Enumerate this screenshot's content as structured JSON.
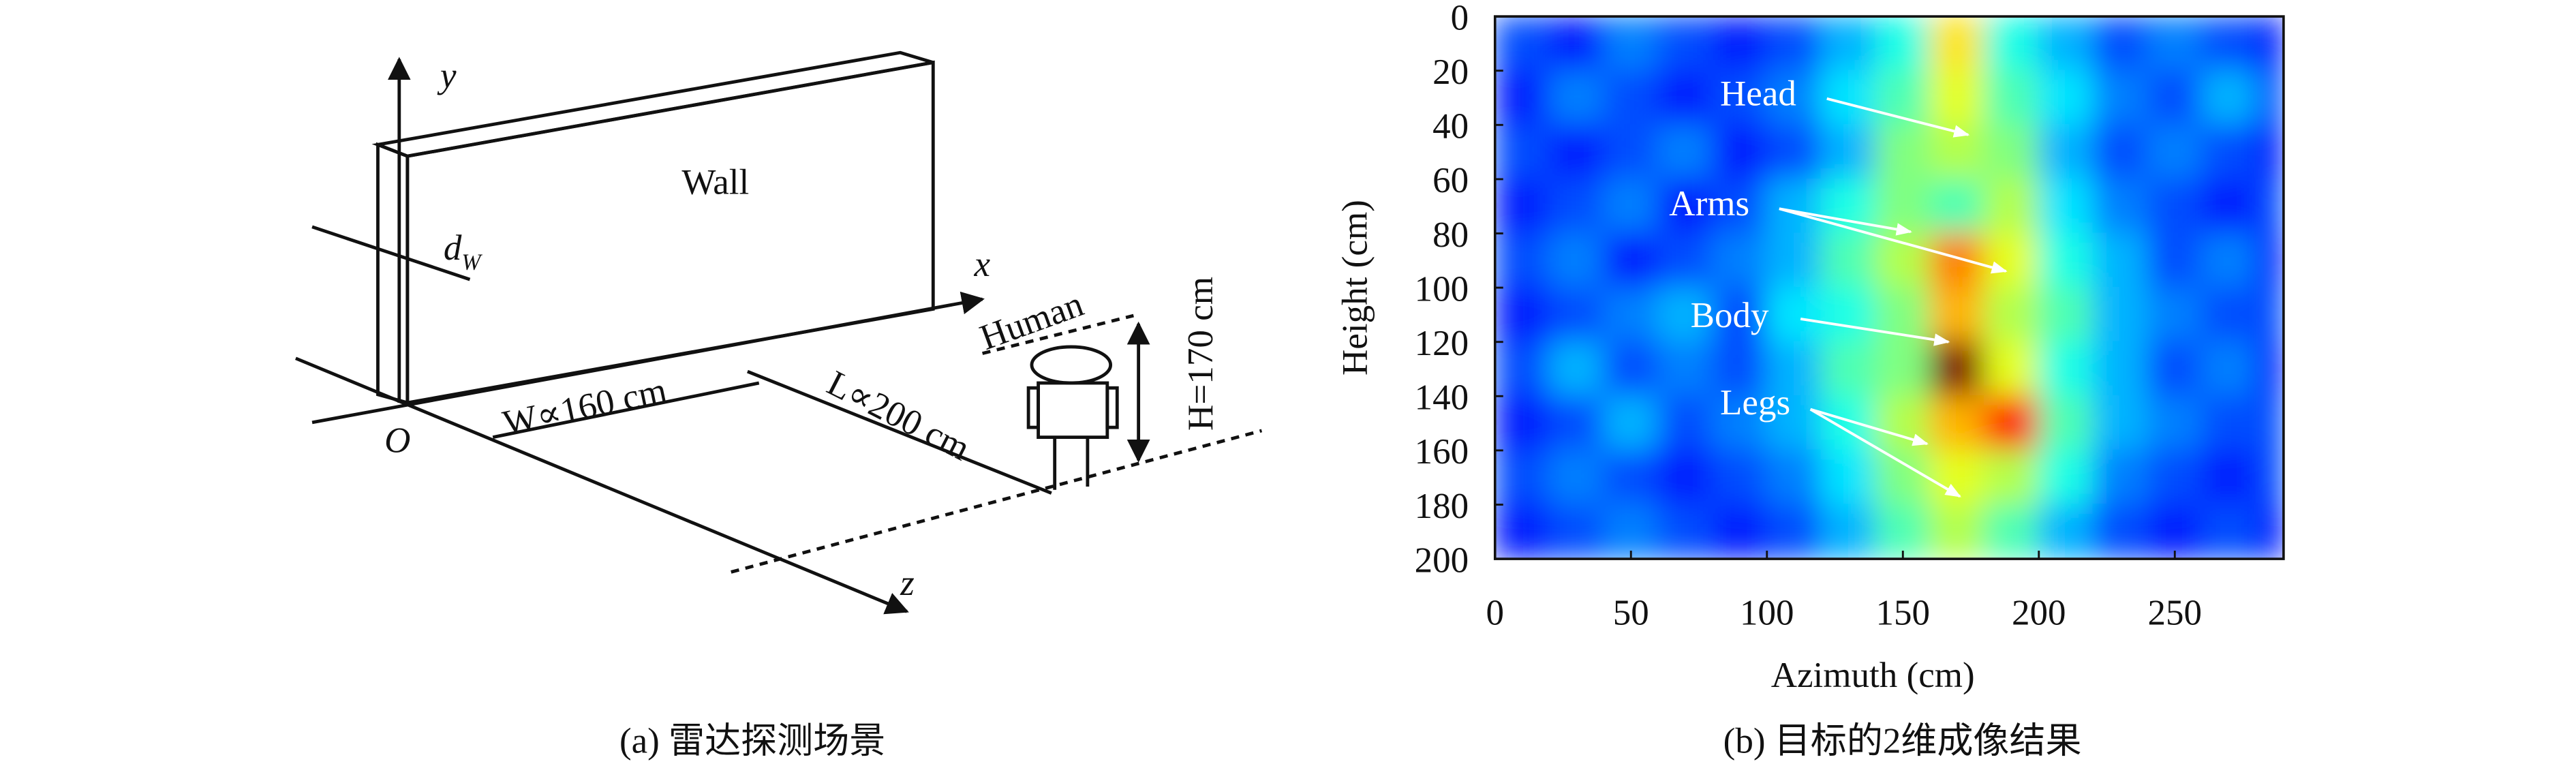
{
  "diagram": {
    "caption": "(a) 雷达探测场景",
    "axis_y": "y",
    "axis_x": "x",
    "axis_z": "z",
    "origin": "O",
    "wall": "Wall",
    "thickness": "d",
    "thickness_sub": "W",
    "width": "W∝160 cm",
    "distance": "L∝200 cm",
    "target": "Human",
    "height": "H=170 cm"
  },
  "chart_data": {
    "type": "heatmap",
    "caption": "(b) 目标的2维成像结果",
    "xlabel": "Azimuth (cm)",
    "ylabel": "Height (cm)",
    "xbins": [
      0,
      20,
      40,
      60,
      80,
      100,
      120,
      140,
      160,
      180,
      200,
      220,
      240,
      260,
      280,
      290
    ],
    "ybins": [
      0,
      20,
      40,
      60,
      80,
      100,
      120,
      140,
      160,
      180,
      200
    ],
    "z": [
      [
        0.2,
        0.15,
        0.25,
        0.2,
        0.15,
        0.2,
        0.3,
        0.4,
        0.65,
        0.4,
        0.3,
        0.2,
        0.25,
        0.2,
        0.15
      ],
      [
        0.15,
        0.25,
        0.2,
        0.15,
        0.2,
        0.25,
        0.35,
        0.45,
        0.6,
        0.45,
        0.35,
        0.25,
        0.2,
        0.3,
        0.2
      ],
      [
        0.2,
        0.15,
        0.2,
        0.25,
        0.15,
        0.2,
        0.3,
        0.5,
        0.55,
        0.5,
        0.3,
        0.2,
        0.25,
        0.2,
        0.15
      ],
      [
        0.15,
        0.2,
        0.25,
        0.15,
        0.2,
        0.3,
        0.4,
        0.5,
        0.45,
        0.55,
        0.35,
        0.25,
        0.2,
        0.15,
        0.2
      ],
      [
        0.2,
        0.25,
        0.15,
        0.2,
        0.25,
        0.3,
        0.45,
        0.55,
        0.75,
        0.6,
        0.4,
        0.3,
        0.2,
        0.25,
        0.15
      ],
      [
        0.15,
        0.2,
        0.25,
        0.3,
        0.2,
        0.35,
        0.4,
        0.5,
        0.7,
        0.55,
        0.45,
        0.3,
        0.25,
        0.2,
        0.2
      ],
      [
        0.2,
        0.3,
        0.2,
        0.25,
        0.2,
        0.3,
        0.45,
        0.5,
        1.0,
        0.6,
        0.4,
        0.3,
        0.2,
        0.25,
        0.15
      ],
      [
        0.15,
        0.2,
        0.3,
        0.2,
        0.25,
        0.3,
        0.4,
        0.55,
        0.7,
        0.85,
        0.45,
        0.3,
        0.25,
        0.2,
        0.2
      ],
      [
        0.2,
        0.25,
        0.2,
        0.15,
        0.2,
        0.25,
        0.35,
        0.5,
        0.6,
        0.55,
        0.4,
        0.25,
        0.2,
        0.15,
        0.2
      ],
      [
        0.15,
        0.2,
        0.25,
        0.2,
        0.15,
        0.2,
        0.3,
        0.45,
        0.55,
        0.45,
        0.3,
        0.2,
        0.15,
        0.2,
        0.15
      ]
    ],
    "xlim": [
      0,
      290
    ],
    "ylim": [
      200,
      0
    ],
    "xticks": [
      0,
      50,
      100,
      150,
      200,
      250
    ],
    "yticks": [
      0,
      20,
      40,
      60,
      80,
      100,
      120,
      140,
      160,
      180,
      200
    ],
    "colormap": "jet",
    "annotations": [
      "Head",
      "Arms",
      "Body",
      "Legs"
    ]
  }
}
